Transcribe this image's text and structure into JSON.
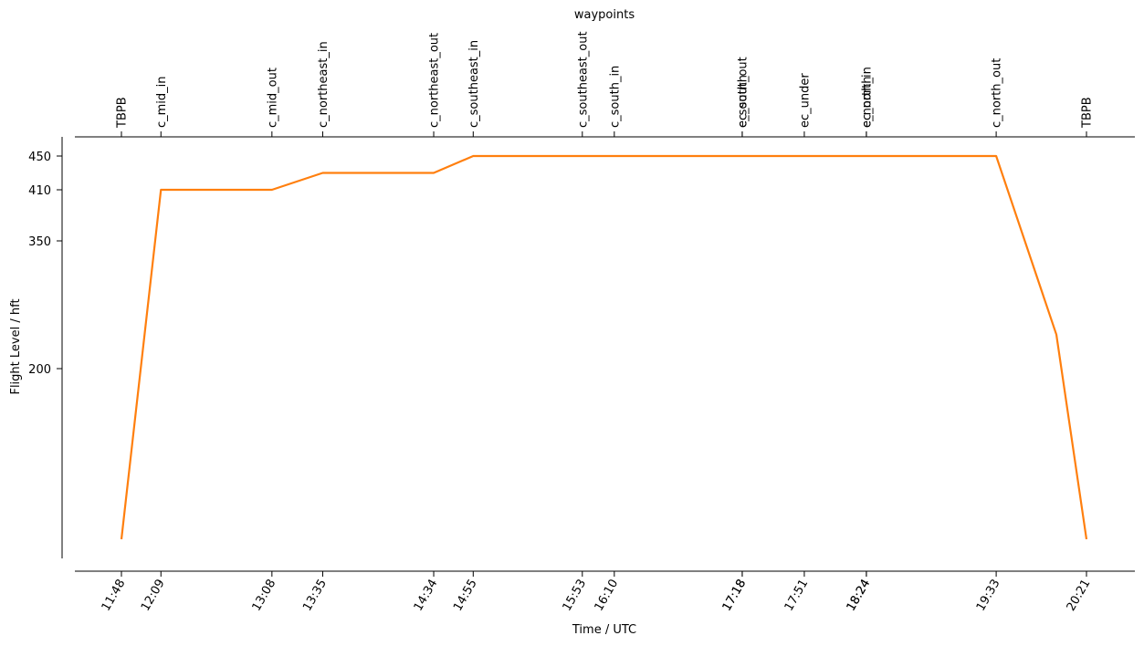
{
  "chart_data": {
    "type": "line",
    "title": "waypoints",
    "xlabel": "Time / UTC",
    "ylabel": "Flight Level / hft",
    "grid": false,
    "legend": "none",
    "x_ticks": [
      {
        "minutes": 708,
        "label": "11:48"
      },
      {
        "minutes": 729,
        "label": "12:09"
      },
      {
        "minutes": 788,
        "label": "13:08"
      },
      {
        "minutes": 815,
        "label": "13:35"
      },
      {
        "minutes": 874,
        "label": "14:34"
      },
      {
        "minutes": 895,
        "label": "14:55"
      },
      {
        "minutes": 953,
        "label": "15:53"
      },
      {
        "minutes": 970,
        "label": "16:10"
      },
      {
        "minutes": 1038,
        "label": "17:18"
      },
      {
        "minutes": 1038,
        "label": "17:18"
      },
      {
        "minutes": 1071,
        "label": "17:51"
      },
      {
        "minutes": 1104,
        "label": "18:24"
      },
      {
        "minutes": 1104,
        "label": "18:24"
      },
      {
        "minutes": 1173,
        "label": "19:33"
      },
      {
        "minutes": 1221,
        "label": "20:21"
      }
    ],
    "waypoints": [
      {
        "minutes": 708,
        "label": "TBPB"
      },
      {
        "minutes": 729,
        "label": "c_mid_in"
      },
      {
        "minutes": 788,
        "label": "c_mid_out"
      },
      {
        "minutes": 815,
        "label": "c_northeast_in"
      },
      {
        "minutes": 874,
        "label": "c_northeast_out"
      },
      {
        "minutes": 895,
        "label": "c_southeast_in"
      },
      {
        "minutes": 953,
        "label": "c_southeast_out"
      },
      {
        "minutes": 970,
        "label": "c_south_in"
      },
      {
        "minutes": 1038,
        "label": "c_south_out"
      },
      {
        "minutes": 1038,
        "label": "ec_south"
      },
      {
        "minutes": 1071,
        "label": "ec_under"
      },
      {
        "minutes": 1104,
        "label": "ec_north"
      },
      {
        "minutes": 1104,
        "label": "c_north_in"
      },
      {
        "minutes": 1173,
        "label": "c_north_out"
      },
      {
        "minutes": 1221,
        "label": "TBPB"
      }
    ],
    "y_ticks": [
      200,
      350,
      410,
      450
    ],
    "series": [
      {
        "color": "#ff7f0e",
        "points": [
          {
            "x": "11:48",
            "y": 0
          },
          {
            "x": "12:09",
            "y": 410
          },
          {
            "x": "13:08",
            "y": 410
          },
          {
            "x": "13:35",
            "y": 430
          },
          {
            "x": "14:34",
            "y": 430
          },
          {
            "x": "14:55",
            "y": 450
          },
          {
            "x": "19:33",
            "y": 450
          },
          {
            "x": "20:05",
            "y": 240
          },
          {
            "x": "20:21",
            "y": 0
          }
        ]
      }
    ]
  }
}
